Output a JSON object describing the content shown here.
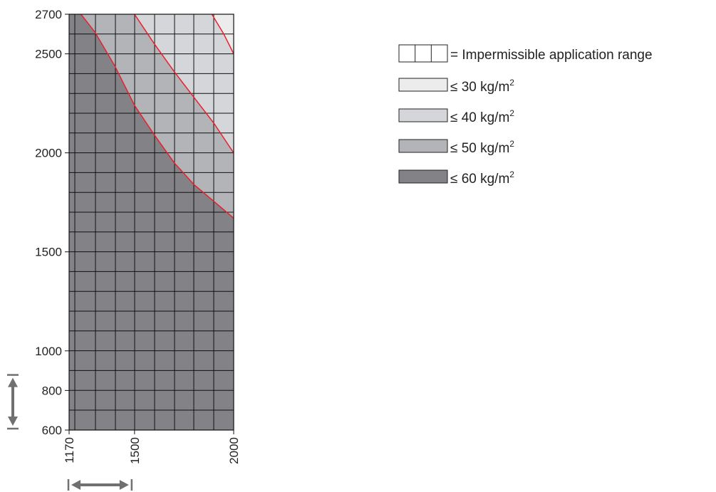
{
  "chart_data": {
    "type": "heatmap",
    "title": "",
    "xlabel": "",
    "ylabel": "",
    "x_range": [
      1170,
      2000
    ],
    "y_range": [
      600,
      2700
    ],
    "x_ticks": [
      {
        "value": 1170,
        "label": "1170"
      },
      {
        "value": 1500,
        "label": "1500"
      },
      {
        "value": 2000,
        "label": "2000"
      }
    ],
    "y_ticks": [
      {
        "value": 600,
        "label": "600"
      },
      {
        "value": 800,
        "label": "800"
      },
      {
        "value": 1000,
        "label": "1000"
      },
      {
        "value": 1500,
        "label": "1500"
      },
      {
        "value": 2000,
        "label": "2000"
      },
      {
        "value": 2500,
        "label": "2500"
      },
      {
        "value": 2700,
        "label": "2700"
      }
    ],
    "grid": true,
    "boundaries": [
      {
        "name": "60/50",
        "points": [
          [
            1230,
            2700
          ],
          [
            1300,
            2610
          ],
          [
            1400,
            2440
          ],
          [
            1500,
            2240
          ],
          [
            1600,
            2090
          ],
          [
            1700,
            1950
          ],
          [
            1800,
            1840
          ],
          [
            1900,
            1755
          ],
          [
            2000,
            1670
          ]
        ]
      },
      {
        "name": "50/40",
        "points": [
          [
            1500,
            2700
          ],
          [
            1600,
            2550
          ],
          [
            1700,
            2410
          ],
          [
            1800,
            2280
          ],
          [
            1900,
            2150
          ],
          [
            2000,
            2000
          ]
        ]
      },
      {
        "name": "40/30",
        "points": [
          [
            1890,
            2700
          ],
          [
            1950,
            2600
          ],
          [
            2000,
            2500
          ]
        ]
      }
    ],
    "zone_colors": {
      "le_30": "#ececec",
      "le_40": "#d5d6d9",
      "le_50": "#b3b4b8",
      "le_60": "#828287"
    },
    "boundary_color": "#e8202c",
    "grid_color": "#111111",
    "legend": {
      "placement": "top-right",
      "impermissible": "= Impermissible application range",
      "items": [
        {
          "prefix": "≤ 30 kg/m",
          "sup": "2",
          "color_key": "le_30"
        },
        {
          "prefix": "≤ 40 kg/m",
          "sup": "2",
          "color_key": "le_40"
        },
        {
          "prefix": "≤ 50 kg/m",
          "sup": "2",
          "color_key": "le_50"
        },
        {
          "prefix": "≤ 60 kg/m",
          "sup": "2",
          "color_key": "le_60"
        }
      ]
    },
    "range_arrows": {
      "vertical": {
        "from": 600,
        "to": 900
      },
      "horizontal": {
        "from": 1170,
        "to": 1500
      }
    }
  }
}
